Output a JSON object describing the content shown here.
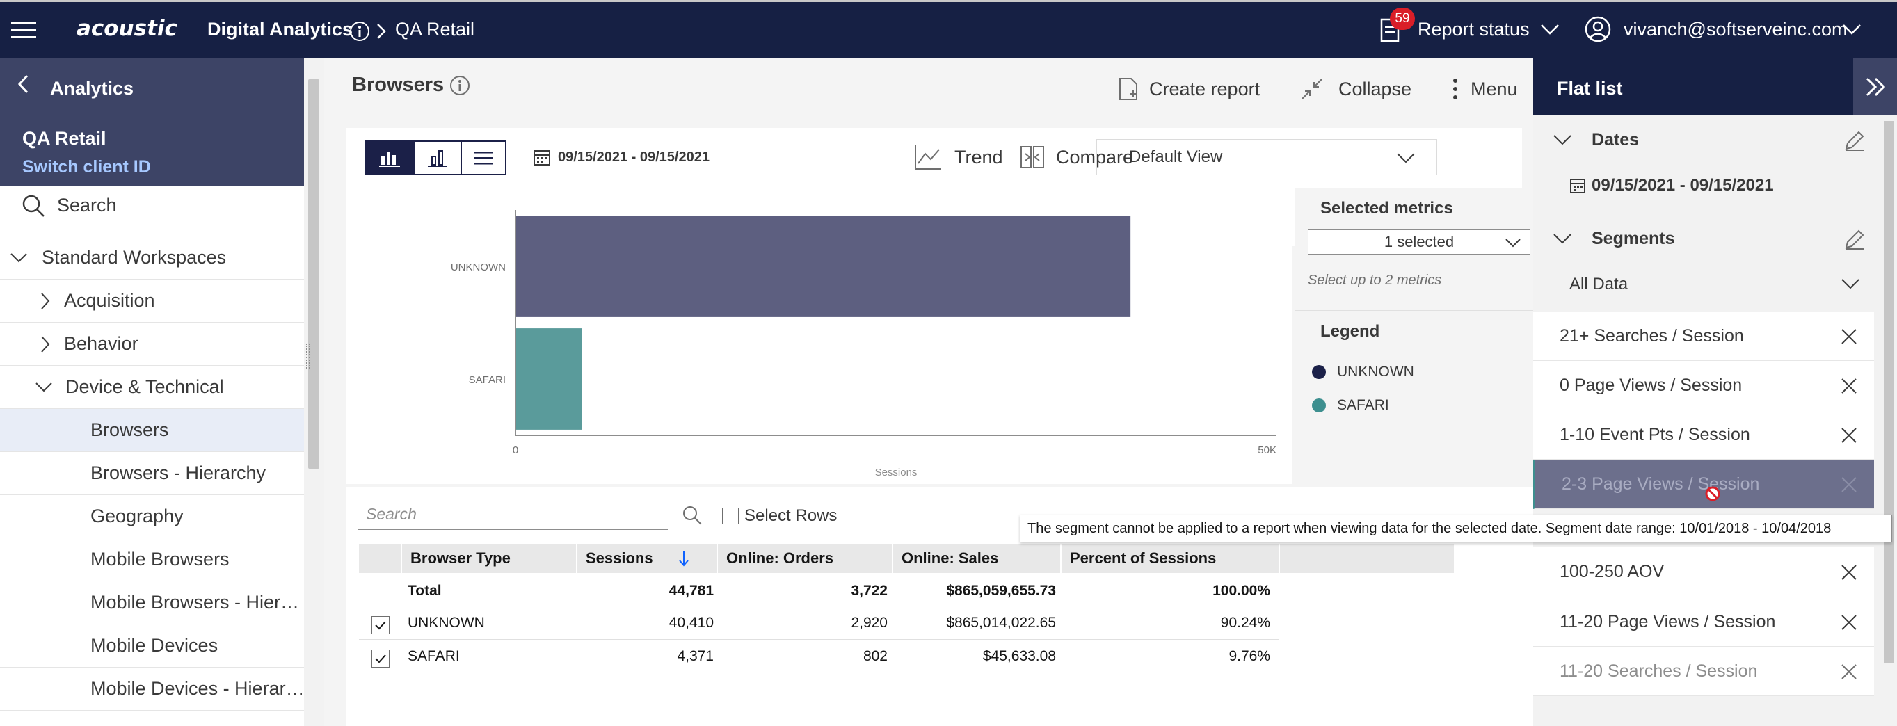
{
  "topbar": {
    "brand": "acoustic",
    "app": "Digital Analytics",
    "breadcrumb_current": "QA Retail",
    "notification_count": "59",
    "report_status": "Report status",
    "user_email": "vivanch@softserveinc.com"
  },
  "nav": {
    "back_label": "Analytics",
    "client": "QA Retail",
    "switch_client": "Switch client ID",
    "search": "Search",
    "workspace": "Standard Workspaces",
    "items": [
      {
        "label": "Acquisition"
      },
      {
        "label": "Behavior"
      },
      {
        "label": "Device & Technical"
      },
      {
        "label": "Browsers"
      },
      {
        "label": "Browsers - Hierarchy"
      },
      {
        "label": "Geography"
      },
      {
        "label": "Mobile Browsers"
      },
      {
        "label": "Mobile Browsers - Hier…"
      },
      {
        "label": "Mobile Devices"
      },
      {
        "label": "Mobile Devices - Hierar…"
      }
    ]
  },
  "report": {
    "title": "Browsers",
    "create_report": "Create report",
    "collapse": "Collapse",
    "menu": "Menu",
    "date_range": "09/15/2021 - 09/15/2021",
    "trend": "Trend",
    "compare": "Compare",
    "view_select": "Default View",
    "selected_metrics_title": "Selected metrics",
    "selected_metrics_value": "1 selected",
    "metrics_hint": "Select up to 2 metrics",
    "legend_title": "Legend",
    "legend": [
      {
        "label": "UNKNOWN",
        "color": "#1b2048"
      },
      {
        "label": "SAFARI",
        "color": "#3d8f8f"
      }
    ]
  },
  "chart_data": {
    "type": "bar",
    "orientation": "horizontal",
    "categories": [
      "UNKNOWN",
      "SAFARI"
    ],
    "series": [
      {
        "values": [
          40410,
          4371
        ]
      }
    ],
    "colors": [
      "#5d5f80",
      "#5a9b9b"
    ],
    "xlabel": "Sessions",
    "xlim": [
      0,
      50000
    ],
    "x_ticks": [
      "0",
      "50K"
    ]
  },
  "table": {
    "search_placeholder": "Search",
    "select_rows": "Select Rows",
    "headers": [
      "Browser Type",
      "Sessions",
      "Online: Orders",
      "Online: Sales",
      "Percent of Sessions"
    ],
    "total": [
      "Total",
      "44,781",
      "3,722",
      "$865,059,655.73",
      "100.00%"
    ],
    "rows": [
      [
        "UNKNOWN",
        "40,410",
        "2,920",
        "$865,014,022.65",
        "90.24%"
      ],
      [
        "SAFARI",
        "4,371",
        "802",
        "$45,633.08",
        "9.76%"
      ]
    ]
  },
  "flatlist": {
    "title": "Flat list",
    "dates_label": "Dates",
    "date_value": "09/15/2021 - 09/15/2021",
    "segments_label": "Segments",
    "segment_filter": "All Data",
    "segments": [
      {
        "label": "21+ Searches / Session"
      },
      {
        "label": "0 Page Views / Session"
      },
      {
        "label": "1-10 Event Pts / Session"
      },
      {
        "label": "2-3 Page Views / Session"
      },
      {
        "label": "100-250 AOV"
      },
      {
        "label": "11-20 Page Views / Session"
      },
      {
        "label": "11-20 Searches / Session"
      }
    ]
  },
  "tooltip": "The segment cannot be applied to a report when viewing data for the selected date. Segment date range: 10/01/2018 - 10/04/2018"
}
